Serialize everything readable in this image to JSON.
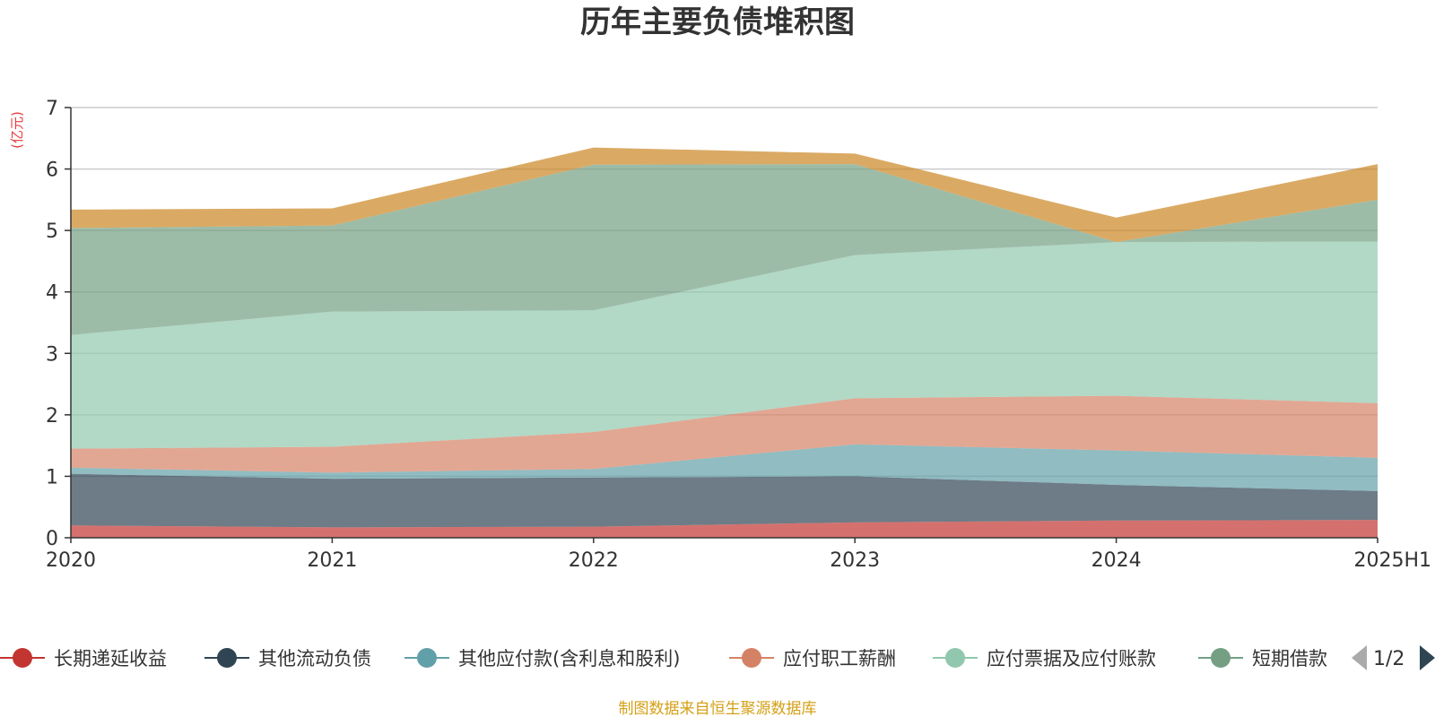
{
  "title": "历年主要负债堆积图",
  "source_note": "制图数据来自恒生聚源数据库",
  "legend_pager": {
    "label": "1/2"
  },
  "chart_data": {
    "type": "area",
    "stacked": true,
    "title": "历年主要负债堆积图",
    "unit_label": "(亿元)",
    "x": [
      "2020",
      "2021",
      "2022",
      "2023",
      "2024",
      "2025H1"
    ],
    "ylim": [
      0,
      7
    ],
    "yticks": [
      0,
      1,
      2,
      3,
      4,
      5,
      6,
      7
    ],
    "grid": true,
    "legend_position": "bottom",
    "series": [
      {
        "name": "长期递延收益",
        "values": [
          0.2,
          0.17,
          0.18,
          0.25,
          0.28,
          0.29
        ],
        "color": "#c23531"
      },
      {
        "name": "其他流动负债",
        "values": [
          0.84,
          0.79,
          0.8,
          0.75,
          0.58,
          0.47
        ],
        "color": "#2f4554"
      },
      {
        "name": "其他应付款(含利息和股利)",
        "values": [
          0.1,
          0.1,
          0.14,
          0.52,
          0.56,
          0.54
        ],
        "color": "#61a0a8"
      },
      {
        "name": "应付职工薪酬",
        "values": [
          0.31,
          0.42,
          0.6,
          0.75,
          0.89,
          0.89
        ],
        "color": "#d48265"
      },
      {
        "name": "应付票据及应付账款",
        "values": [
          1.85,
          2.2,
          1.98,
          2.33,
          2.5,
          2.63
        ],
        "color": "#91c7ae"
      },
      {
        "name": "短期借款",
        "display_name": "短期借款",
        "values": [
          1.74,
          1.4,
          2.37,
          1.48,
          0.0,
          0.68
        ],
        "color": "#749f83"
      },
      {
        "name": "",
        "values": [
          0.3,
          0.28,
          0.28,
          0.17,
          0.4,
          0.58
        ],
        "color": "#ca8622"
      }
    ]
  }
}
